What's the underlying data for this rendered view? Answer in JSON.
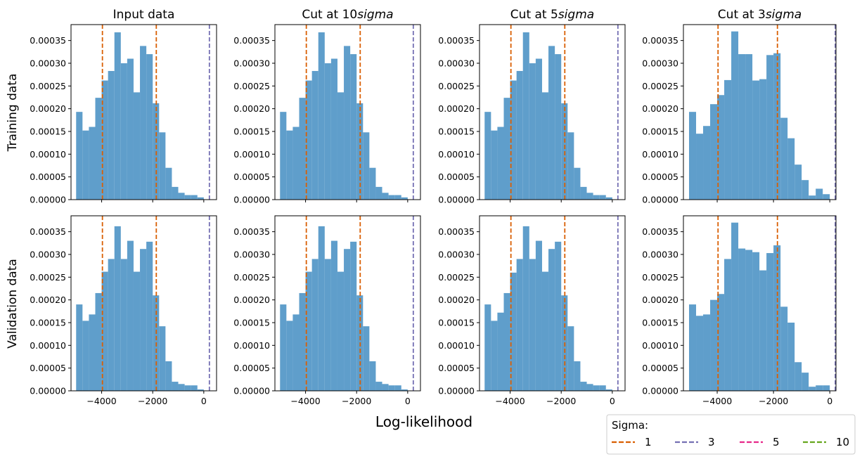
{
  "figure": {
    "xlabel": "Log-likelihood",
    "row_labels": [
      "Training data",
      "Validation data"
    ],
    "column_titles": [
      {
        "prefix": "Input data",
        "italic": ""
      },
      {
        "prefix": "Cut at 10",
        "italic": "sigma"
      },
      {
        "prefix": "Cut at 5",
        "italic": "sigma"
      },
      {
        "prefix": "Cut at 3",
        "italic": "sigma"
      }
    ]
  },
  "legend": {
    "title": "Sigma:",
    "placement": "bottom-right",
    "entries": [
      {
        "label": "1",
        "color": "#d95f02"
      },
      {
        "label": "3",
        "color": "#7570b3"
      },
      {
        "label": "5",
        "color": "#e7298a"
      },
      {
        "label": "10",
        "color": "#66a61e"
      }
    ]
  },
  "colors": {
    "bar": "#5f9ecb"
  },
  "chart_data": [
    {
      "type": "bar",
      "panel": "Training data / Input data",
      "row": 0,
      "col": 0,
      "bin_start": -5000,
      "bin_width": 250,
      "values": [
        0.000193,
        0.000152,
        0.00016,
        0.000224,
        0.000262,
        0.000283,
        0.000368,
        0.0003,
        0.00031,
        0.000236,
        0.000338,
        0.00032,
        0.000212,
        0.000148,
        7e-05,
        2.8e-05,
        1.5e-05,
        1e-05,
        1e-05,
        5e-06
      ],
      "vlines": [
        {
          "x": -3970,
          "sigma": "1"
        },
        {
          "x": -1860,
          "sigma": "1"
        },
        {
          "x": 220,
          "sigma": "3"
        }
      ],
      "xlim": [
        -5200,
        500
      ],
      "ylim": [
        0,
        0.000385
      ]
    },
    {
      "type": "bar",
      "panel": "Training data / Cut at 10sigma",
      "row": 0,
      "col": 1,
      "bin_start": -5000,
      "bin_width": 250,
      "values": [
        0.000193,
        0.000152,
        0.00016,
        0.000224,
        0.000262,
        0.000283,
        0.000368,
        0.0003,
        0.00031,
        0.000236,
        0.000338,
        0.00032,
        0.000212,
        0.000148,
        7e-05,
        2.8e-05,
        1.5e-05,
        1e-05,
        1e-05,
        5e-06
      ],
      "vlines": [
        {
          "x": -3970,
          "sigma": "1"
        },
        {
          "x": -1860,
          "sigma": "1"
        },
        {
          "x": 220,
          "sigma": "3"
        }
      ],
      "xlim": [
        -5200,
        500
      ],
      "ylim": [
        0,
        0.000385
      ]
    },
    {
      "type": "bar",
      "panel": "Training data / Cut at 5sigma",
      "row": 0,
      "col": 2,
      "bin_start": -5000,
      "bin_width": 250,
      "values": [
        0.000193,
        0.000152,
        0.00016,
        0.000224,
        0.000262,
        0.000283,
        0.000368,
        0.0003,
        0.00031,
        0.000236,
        0.000338,
        0.00032,
        0.000212,
        0.000148,
        7e-05,
        2.8e-05,
        1.5e-05,
        1e-05,
        1e-05,
        5e-06
      ],
      "vlines": [
        {
          "x": -3970,
          "sigma": "1"
        },
        {
          "x": -1860,
          "sigma": "1"
        },
        {
          "x": 220,
          "sigma": "3"
        }
      ],
      "xlim": [
        -5200,
        500
      ],
      "ylim": [
        0,
        0.000385
      ]
    },
    {
      "type": "bar",
      "panel": "Training data / Cut at 3sigma",
      "row": 0,
      "col": 3,
      "bin_start": -5000,
      "bin_width": 250,
      "values": [
        0.000193,
        0.000145,
        0.000162,
        0.00021,
        0.00023,
        0.000263,
        0.00037,
        0.00032,
        0.00032,
        0.000262,
        0.000265,
        0.000318,
        0.000322,
        0.00018,
        0.000135,
        7.7e-05,
        4.3e-05,
        9e-06,
        2.4e-05,
        1.2e-05
      ],
      "vlines": [
        {
          "x": -3970,
          "sigma": "1"
        },
        {
          "x": -1860,
          "sigma": "1"
        },
        {
          "x": 230,
          "sigma": "3"
        }
      ],
      "xlim": [
        -5200,
        220
      ],
      "ylim": [
        0,
        0.000385
      ]
    },
    {
      "type": "bar",
      "panel": "Validation data / Input data",
      "row": 1,
      "col": 0,
      "bin_start": -5000,
      "bin_width": 250,
      "values": [
        0.00019,
        0.000154,
        0.000168,
        0.000215,
        0.000262,
        0.00029,
        0.000362,
        0.00029,
        0.00033,
        0.000262,
        0.000312,
        0.000328,
        0.00021,
        0.000142,
        6.5e-05,
        2e-05,
        1.5e-05,
        1.2e-05,
        1.2e-05,
        3e-06
      ],
      "vlines": [
        {
          "x": -3970,
          "sigma": "1"
        },
        {
          "x": -1860,
          "sigma": "1"
        },
        {
          "x": 220,
          "sigma": "3"
        }
      ],
      "xlim": [
        -5200,
        500
      ],
      "ylim": [
        0,
        0.000385
      ]
    },
    {
      "type": "bar",
      "panel": "Validation data / Cut at 10sigma",
      "row": 1,
      "col": 1,
      "bin_start": -5000,
      "bin_width": 250,
      "values": [
        0.00019,
        0.000154,
        0.000168,
        0.000215,
        0.000262,
        0.00029,
        0.000362,
        0.00029,
        0.00033,
        0.000262,
        0.000312,
        0.000328,
        0.00021,
        0.000142,
        6.5e-05,
        2e-05,
        1.5e-05,
        1.2e-05,
        1.2e-05,
        3e-06
      ],
      "vlines": [
        {
          "x": -3970,
          "sigma": "1"
        },
        {
          "x": -1860,
          "sigma": "1"
        },
        {
          "x": 220,
          "sigma": "3"
        }
      ],
      "xlim": [
        -5200,
        500
      ],
      "ylim": [
        0,
        0.000385
      ]
    },
    {
      "type": "bar",
      "panel": "Validation data / Cut at 5sigma",
      "row": 1,
      "col": 2,
      "bin_start": -5000,
      "bin_width": 250,
      "values": [
        0.00019,
        0.000154,
        0.000172,
        0.000215,
        0.00026,
        0.00029,
        0.000362,
        0.00029,
        0.00033,
        0.000262,
        0.000312,
        0.000328,
        0.00021,
        0.000142,
        6.5e-05,
        2e-05,
        1.5e-05,
        1.2e-05,
        1.2e-05,
        3e-06
      ],
      "vlines": [
        {
          "x": -3970,
          "sigma": "1"
        },
        {
          "x": -1860,
          "sigma": "1"
        },
        {
          "x": 220,
          "sigma": "3"
        }
      ],
      "xlim": [
        -5200,
        500
      ],
      "ylim": [
        0,
        0.000385
      ]
    },
    {
      "type": "bar",
      "panel": "Validation data / Cut at 3sigma",
      "row": 1,
      "col": 3,
      "bin_start": -5000,
      "bin_width": 250,
      "values": [
        0.00019,
        0.000165,
        0.000168,
        0.0002,
        0.000213,
        0.00029,
        0.00037,
        0.000313,
        0.00031,
        0.000305,
        0.000265,
        0.000303,
        0.00032,
        0.000185,
        0.00015,
        6.3e-05,
        4e-05,
        9e-06,
        1.2e-05,
        1.2e-05
      ],
      "vlines": [
        {
          "x": -3970,
          "sigma": "1"
        },
        {
          "x": -1860,
          "sigma": "1"
        },
        {
          "x": 230,
          "sigma": "3"
        }
      ],
      "xlim": [
        -5200,
        220
      ],
      "ylim": [
        0,
        0.000385
      ]
    }
  ],
  "y_ticks": [
    0,
    5e-05,
    0.0001,
    0.00015,
    0.0002,
    0.00025,
    0.0003,
    0.00035
  ],
  "y_tick_labels": [
    "0.00000",
    "0.00005",
    "0.00010",
    "0.00015",
    "0.00020",
    "0.00025",
    "0.00030",
    "0.00035"
  ],
  "x_ticks": [
    -4000,
    -2000,
    0
  ],
  "x_tick_labels": [
    "−4000",
    "−2000",
    "0"
  ]
}
